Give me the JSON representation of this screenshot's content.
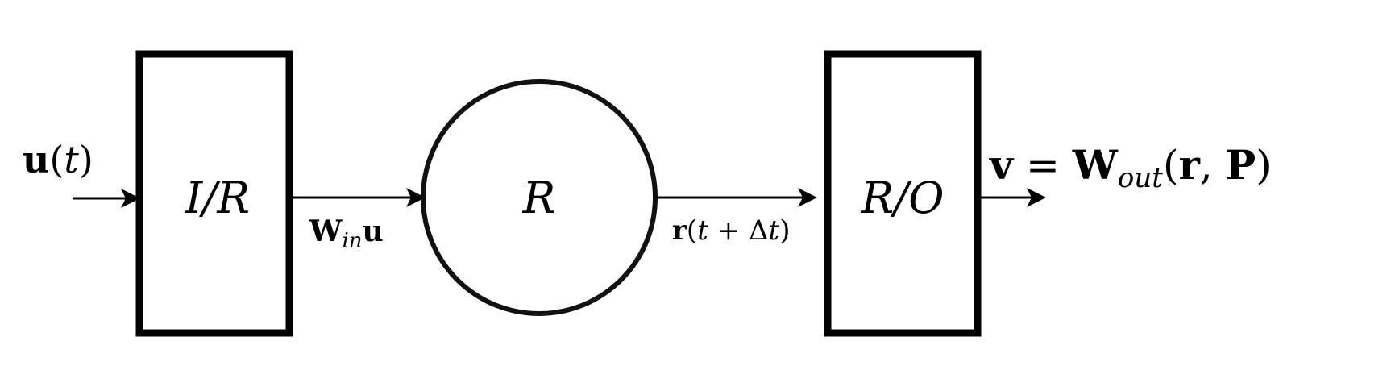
{
  "diagram": {
    "nodes": {
      "input_box": {
        "label": "I/R",
        "shape": "rectangle"
      },
      "reservoir": {
        "label": "R",
        "shape": "circle"
      },
      "output_box": {
        "label": "R/O",
        "shape": "rectangle"
      }
    },
    "edges": {
      "input": {
        "label": "u(t)",
        "parts": {
          "u": "u",
          "paren_open": "(",
          "t": "t",
          "paren_close": ")"
        }
      },
      "input_to_reservoir": {
        "label": "W_in u",
        "parts": {
          "W": "W",
          "in": "in",
          "u": "u"
        }
      },
      "reservoir_to_output": {
        "label": "r(t + Δt)",
        "parts": {
          "r": "r",
          "paren_open": "(",
          "t": "t",
          "plus": " + ",
          "delta": "Δ",
          "t2": "t",
          "paren_close": ")"
        }
      },
      "output": {
        "label": "v = W_out(r, P)",
        "parts": {
          "v": "v",
          "eq": " = ",
          "W": "W",
          "out": "out",
          "paren_open": "(",
          "r": "r",
          "comma": ", ",
          "P": "P",
          "paren_close": ")"
        }
      }
    },
    "colors": {
      "stroke": "#000000",
      "background": "#ffffff"
    }
  }
}
